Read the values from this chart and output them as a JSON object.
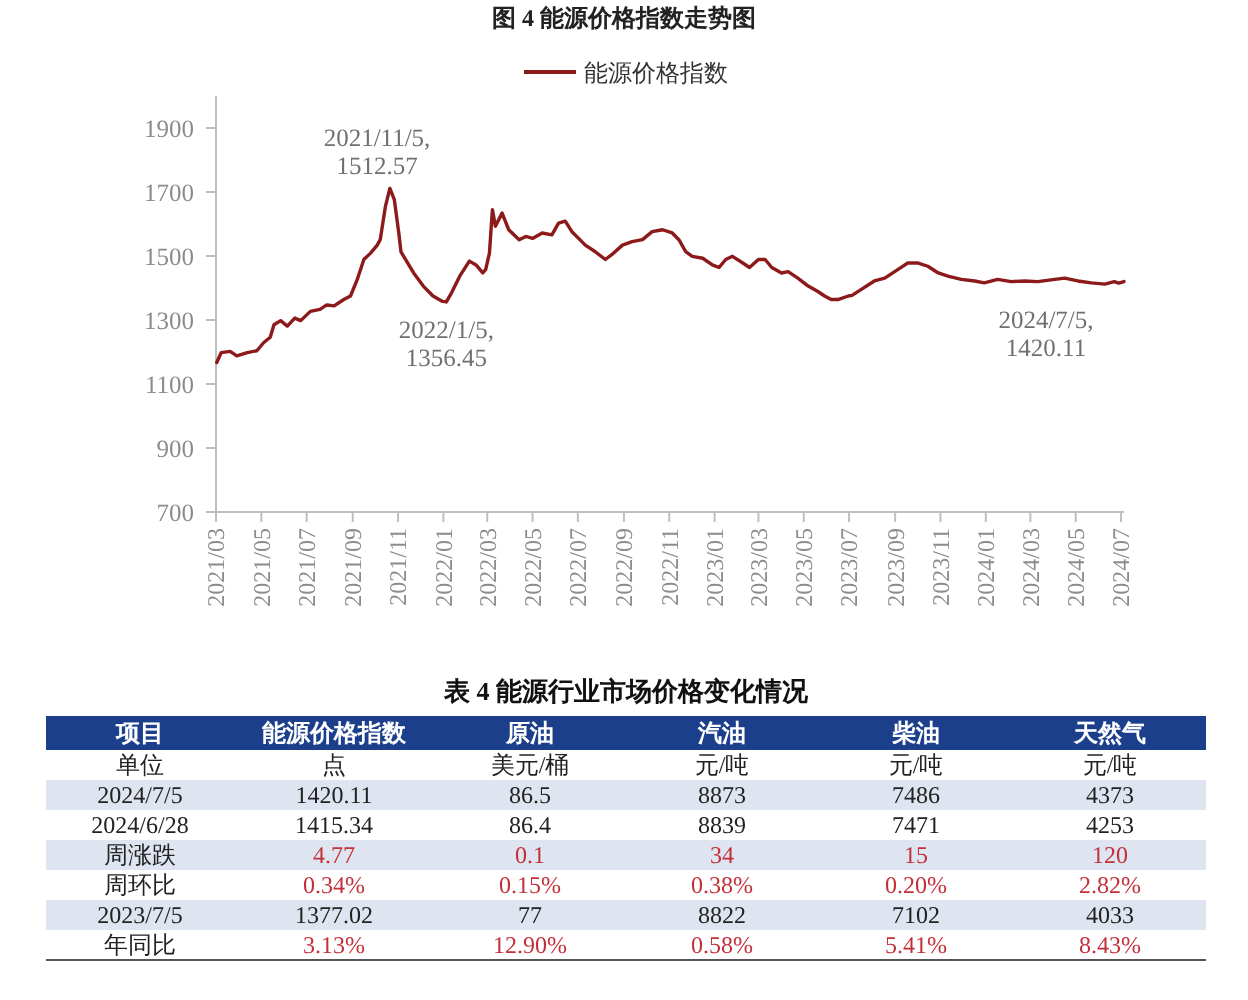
{
  "chart_data": [
    {
      "type": "line",
      "title": "图 4 能源价格指数走势图",
      "legend": "top",
      "xlim": [
        "2021-03-01",
        "2024-07-05"
      ],
      "xticks": [
        {
          "value": "2021-03-01",
          "label": "2021/03"
        },
        {
          "value": "2021-05-01",
          "label": "2021/05"
        },
        {
          "value": "2021-07-01",
          "label": "2021/07"
        },
        {
          "value": "2021-09-01",
          "label": "2021/09"
        },
        {
          "value": "2021-11-01",
          "label": "2021/11"
        },
        {
          "value": "2022-01-01",
          "label": "2022/01"
        },
        {
          "value": "2022-03-01",
          "label": "2022/03"
        },
        {
          "value": "2022-05-01",
          "label": "2022/05"
        },
        {
          "value": "2022-07-01",
          "label": "2022/07"
        },
        {
          "value": "2022-09-01",
          "label": "2022/09"
        },
        {
          "value": "2022-11-01",
          "label": "2022/11"
        },
        {
          "value": "2023-01-01",
          "label": "2023/01"
        },
        {
          "value": "2023-03-01",
          "label": "2023/03"
        },
        {
          "value": "2023-05-01",
          "label": "2023/05"
        },
        {
          "value": "2023-07-01",
          "label": "2023/07"
        },
        {
          "value": "2023-09-01",
          "label": "2023/09"
        },
        {
          "value": "2023-11-01",
          "label": "2023/11"
        },
        {
          "value": "2024-01-01",
          "label": "2024/01"
        },
        {
          "value": "2024-03-01",
          "label": "2024/03"
        },
        {
          "value": "2024-05-01",
          "label": "2024/05"
        },
        {
          "value": "2024-07-01",
          "label": "2024/07"
        }
      ],
      "ylim": [
        700,
        2000
      ],
      "yticks": [
        700,
        900,
        1100,
        1300,
        1500,
        1700,
        1900
      ],
      "x": [
        "2021-03-02",
        "2021-03-08",
        "2021-03-20",
        "2021-03-29",
        "2021-04-12",
        "2021-04-25",
        "2021-05-04",
        "2021-05-13",
        "2021-05-18",
        "2021-05-27",
        "2021-06-05",
        "2021-06-15",
        "2021-06-23",
        "2021-07-06",
        "2021-07-19",
        "2021-07-28",
        "2021-08-07",
        "2021-08-20",
        "2021-08-29",
        "2021-09-07",
        "2021-09-16",
        "2021-09-25",
        "2021-10-04",
        "2021-10-08",
        "2021-10-15",
        "2021-10-21",
        "2021-10-27",
        "2021-11-02",
        "2021-11-05",
        "2021-11-22",
        "2021-12-05",
        "2021-12-18",
        "2021-12-31",
        "2022-01-05",
        "2022-01-12",
        "2022-01-23",
        "2022-02-05",
        "2022-02-14",
        "2022-02-23",
        "2022-02-27",
        "2022-03-04",
        "2022-03-08",
        "2022-03-12",
        "2022-03-21",
        "2022-03-30",
        "2022-04-13",
        "2022-04-22",
        "2022-05-01",
        "2022-05-14",
        "2022-05-27",
        "2022-06-05",
        "2022-06-14",
        "2022-06-23",
        "2022-07-02",
        "2022-07-11",
        "2022-07-24",
        "2022-08-07",
        "2022-08-16",
        "2022-08-30",
        "2022-09-12",
        "2022-09-26",
        "2022-10-09",
        "2022-10-23",
        "2022-11-05",
        "2022-11-14",
        "2022-11-23",
        "2022-12-02",
        "2022-12-16",
        "2022-12-29",
        "2023-01-07",
        "2023-01-16",
        "2023-01-25",
        "2023-02-08",
        "2023-02-17",
        "2023-03-01",
        "2023-03-10",
        "2023-03-19",
        "2023-04-01",
        "2023-04-10",
        "2023-04-23",
        "2023-05-07",
        "2023-05-20",
        "2023-05-29",
        "2023-06-07",
        "2023-06-16",
        "2023-06-30",
        "2023-07-05",
        "2023-07-17",
        "2023-08-04",
        "2023-08-18",
        "2023-09-05",
        "2023-09-18",
        "2023-10-02",
        "2023-10-15",
        "2023-10-29",
        "2023-11-11",
        "2023-11-29",
        "2023-12-17",
        "2023-12-30",
        "2024-01-17",
        "2024-02-04",
        "2024-02-22",
        "2024-03-11",
        "2024-04-03",
        "2024-04-16",
        "2024-05-04",
        "2024-05-22",
        "2024-06-09",
        "2024-06-22",
        "2024-06-28",
        "2024-07-05"
      ],
      "series": [
        {
          "name": "能源价格指数",
          "color": "#8c1a1a",
          "values": [
            1167,
            1198,
            1202,
            1188,
            1198,
            1204,
            1229,
            1246,
            1285,
            1298,
            1281,
            1306,
            1298,
            1327,
            1333,
            1347,
            1344,
            1364,
            1375,
            1426,
            1489,
            1509,
            1534,
            1551,
            1655,
            1711,
            1676,
            1572,
            1512.57,
            1447,
            1406,
            1375,
            1358,
            1356.45,
            1385,
            1437,
            1484,
            1472,
            1447,
            1458,
            1509,
            1645,
            1593,
            1634,
            1582,
            1551,
            1561,
            1555,
            1572,
            1566,
            1603,
            1609,
            1576,
            1555,
            1534,
            1514,
            1489,
            1505,
            1534,
            1545,
            1551,
            1576,
            1582,
            1572,
            1551,
            1514,
            1499,
            1493,
            1472,
            1464,
            1489,
            1499,
            1478,
            1464,
            1489,
            1489,
            1464,
            1447,
            1451,
            1431,
            1406,
            1389,
            1375,
            1364,
            1364,
            1375,
            1377,
            1395,
            1422,
            1431,
            1458,
            1478,
            1478,
            1468,
            1447,
            1437,
            1427,
            1422,
            1416,
            1427,
            1420,
            1422,
            1420,
            1427,
            1431,
            1422,
            1416,
            1412,
            1420,
            1415,
            1420.11
          ]
        }
      ],
      "annotations": [
        {
          "text": "2021/11/5,\n1512.57",
          "x": "2021-11-05",
          "y": 1512.57
        },
        {
          "text": "2022/1/5,\n1356.45",
          "x": "2022-01-05",
          "y": 1356.45
        },
        {
          "text": "2024/7/5,\n1420.11",
          "x": "2024-07-05",
          "y": 1420.11
        }
      ]
    },
    {
      "type": "other",
      "title": "表 4 能源行业市场价格变化情况",
      "ylabel": "项目",
      "categories": [
        "能源价格指数",
        "原油",
        "汽油",
        "柴油",
        "天然气"
      ],
      "y_categories": [
        "单位",
        "2024/7/5",
        "2024/6/28",
        "周涨跌",
        "周环比",
        "2023/7/5",
        "年同比"
      ],
      "cell_labels": [
        [
          "点",
          "美元/桶",
          "元/吨",
          "元/吨",
          "元/吨"
        ],
        [
          "1420.11",
          "86.5",
          "8873",
          "7486",
          "4373"
        ],
        [
          "1415.34",
          "86.4",
          "8839",
          "7471",
          "4253"
        ],
        [
          "4.77",
          "0.1",
          "34",
          "15",
          "120"
        ],
        [
          "0.34%",
          "0.15%",
          "0.38%",
          "0.20%",
          "2.82%"
        ],
        [
          "1377.02",
          "77",
          "8822",
          "7102",
          "4033"
        ],
        [
          "3.13%",
          "12.90%",
          "0.58%",
          "5.41%",
          "8.43%"
        ]
      ]
    }
  ]
}
